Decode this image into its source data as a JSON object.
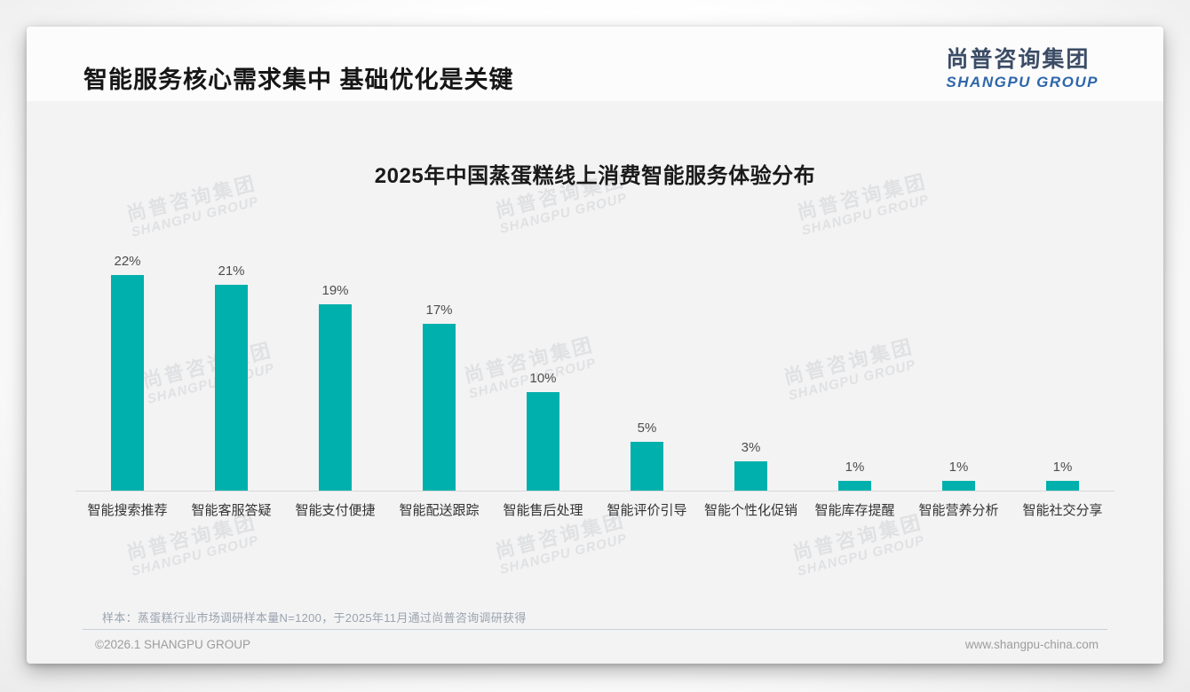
{
  "page": {
    "title": "智能服务核心需求集中 基础优化是关键",
    "logo": {
      "cn": "尚普咨询集团",
      "en": "SHANGPU GROUP"
    },
    "watermark": {
      "cn": "尚普咨询集团",
      "en": "SHANGPU GROUP"
    },
    "footnote": "样本：蒸蛋糕行业市场调研样本量N=1200，于2025年11月通过尚普咨询调研获得",
    "footer": {
      "copyright": "©2026.1 SHANGPU GROUP",
      "website": "www.shangpu-china.com"
    }
  },
  "chart_data": {
    "type": "bar",
    "title": "2025年中国蒸蛋糕线上消费智能服务体验分布",
    "categories": [
      "智能搜索推荐",
      "智能客服答疑",
      "智能支付便捷",
      "智能配送跟踪",
      "智能售后处理",
      "智能评价引导",
      "智能个性化促销",
      "智能库存提醒",
      "智能营养分析",
      "智能社交分享"
    ],
    "values": [
      22,
      21,
      19,
      17,
      10,
      5,
      3,
      1,
      1,
      1
    ],
    "value_labels": [
      "22%",
      "21%",
      "19%",
      "17%",
      "10%",
      "5%",
      "3%",
      "1%",
      "1%",
      "1%"
    ],
    "unit": "%",
    "xlabel": "",
    "ylabel": "",
    "ylim": [
      0,
      24
    ],
    "grid": false,
    "legend": "none",
    "bar_color": "#00B0AC"
  },
  "colors": {
    "bar": "#00B0AC",
    "page_title": "#161616",
    "logo_cn": "#3c4c66",
    "logo_en": "#2e66ab",
    "axis_line": "#d9d9d9",
    "divider": "#c9d1da",
    "muted_text": "#9aa3ae",
    "footer_text": "#9d9d9d"
  }
}
